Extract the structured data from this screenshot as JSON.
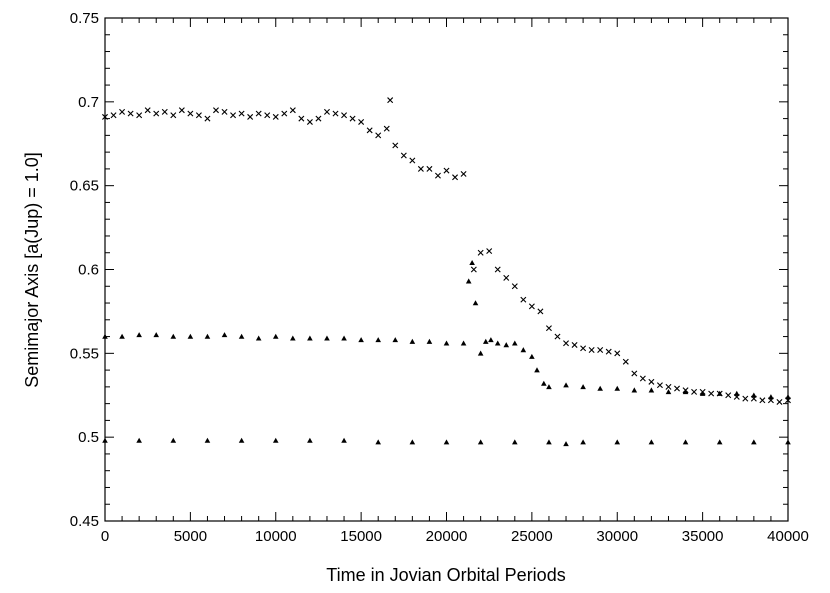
{
  "chart_data": {
    "type": "scatter",
    "title": "",
    "xlabel": "Time in Jovian Orbital Periods",
    "ylabel": "Semimajor Axis [a(Jup) = 1.0]",
    "xlim": [
      0,
      40000
    ],
    "ylim": [
      0.45,
      0.75
    ],
    "xticks": [
      0,
      5000,
      10000,
      15000,
      20000,
      25000,
      30000,
      35000,
      40000
    ],
    "yticks": [
      0.45,
      0.5,
      0.55,
      0.6,
      0.65,
      0.7,
      0.75
    ],
    "ytick_labels": [
      "0.45",
      "0.5",
      "0.55",
      "0.6",
      "0.65",
      "0.7",
      "0.75"
    ],
    "grid": false,
    "legend": "none",
    "series": [
      {
        "marker": "x",
        "points": [
          [
            0,
            0.691
          ],
          [
            500,
            0.692
          ],
          [
            1000,
            0.694
          ],
          [
            1500,
            0.693
          ],
          [
            2000,
            0.692
          ],
          [
            2500,
            0.695
          ],
          [
            3000,
            0.693
          ],
          [
            3500,
            0.694
          ],
          [
            4000,
            0.692
          ],
          [
            4500,
            0.695
          ],
          [
            5000,
            0.693
          ],
          [
            5500,
            0.692
          ],
          [
            6000,
            0.69
          ],
          [
            6500,
            0.695
          ],
          [
            7000,
            0.694
          ],
          [
            7500,
            0.692
          ],
          [
            8000,
            0.693
          ],
          [
            8500,
            0.691
          ],
          [
            9000,
            0.693
          ],
          [
            9500,
            0.692
          ],
          [
            10000,
            0.691
          ],
          [
            10500,
            0.693
          ],
          [
            11000,
            0.695
          ],
          [
            11500,
            0.69
          ],
          [
            12000,
            0.688
          ],
          [
            12500,
            0.69
          ],
          [
            13000,
            0.694
          ],
          [
            13500,
            0.693
          ],
          [
            14000,
            0.692
          ],
          [
            14500,
            0.69
          ],
          [
            15000,
            0.688
          ],
          [
            15500,
            0.683
          ],
          [
            16000,
            0.68
          ],
          [
            16500,
            0.684
          ],
          [
            16700,
            0.701
          ],
          [
            17000,
            0.674
          ],
          [
            17500,
            0.668
          ],
          [
            18000,
            0.665
          ],
          [
            18500,
            0.66
          ],
          [
            19000,
            0.66
          ],
          [
            19500,
            0.656
          ],
          [
            20000,
            0.659
          ],
          [
            20500,
            0.655
          ],
          [
            21000,
            0.657
          ],
          [
            21600,
            0.6
          ],
          [
            22000,
            0.61
          ],
          [
            22500,
            0.611
          ],
          [
            23000,
            0.6
          ],
          [
            23500,
            0.595
          ],
          [
            24000,
            0.59
          ],
          [
            24500,
            0.582
          ],
          [
            25000,
            0.578
          ],
          [
            25500,
            0.575
          ],
          [
            26000,
            0.565
          ],
          [
            26500,
            0.56
          ],
          [
            27000,
            0.556
          ],
          [
            27500,
            0.555
          ],
          [
            28000,
            0.553
          ],
          [
            28500,
            0.552
          ],
          [
            29000,
            0.552
          ],
          [
            29500,
            0.551
          ],
          [
            30000,
            0.55
          ],
          [
            30500,
            0.545
          ],
          [
            31000,
            0.538
          ],
          [
            31500,
            0.535
          ],
          [
            32000,
            0.533
          ],
          [
            32500,
            0.531
          ],
          [
            33000,
            0.53
          ],
          [
            33500,
            0.529
          ],
          [
            34000,
            0.528
          ],
          [
            34500,
            0.527
          ],
          [
            35000,
            0.527
          ],
          [
            35500,
            0.526
          ],
          [
            36000,
            0.526
          ],
          [
            36500,
            0.525
          ],
          [
            37000,
            0.524
          ],
          [
            37500,
            0.523
          ],
          [
            38000,
            0.523
          ],
          [
            38500,
            0.522
          ],
          [
            39000,
            0.522
          ],
          [
            39500,
            0.521
          ],
          [
            40000,
            0.522
          ]
        ]
      },
      {
        "marker": "triangle",
        "points": [
          [
            0,
            0.56
          ],
          [
            1000,
            0.56
          ],
          [
            2000,
            0.561
          ],
          [
            3000,
            0.561
          ],
          [
            4000,
            0.56
          ],
          [
            5000,
            0.56
          ],
          [
            6000,
            0.56
          ],
          [
            7000,
            0.561
          ],
          [
            8000,
            0.56
          ],
          [
            9000,
            0.559
          ],
          [
            10000,
            0.56
          ],
          [
            11000,
            0.559
          ],
          [
            12000,
            0.559
          ],
          [
            13000,
            0.559
          ],
          [
            14000,
            0.559
          ],
          [
            15000,
            0.558
          ],
          [
            16000,
            0.558
          ],
          [
            17000,
            0.558
          ],
          [
            18000,
            0.557
          ],
          [
            19000,
            0.557
          ],
          [
            20000,
            0.556
          ],
          [
            21000,
            0.556
          ],
          [
            21300,
            0.593
          ],
          [
            21500,
            0.604
          ],
          [
            21700,
            0.58
          ],
          [
            22000,
            0.55
          ],
          [
            22300,
            0.557
          ],
          [
            22600,
            0.558
          ],
          [
            23000,
            0.556
          ],
          [
            23500,
            0.555
          ],
          [
            24000,
            0.556
          ],
          [
            24500,
            0.552
          ],
          [
            25000,
            0.548
          ],
          [
            25300,
            0.54
          ],
          [
            25700,
            0.532
          ],
          [
            26000,
            0.53
          ],
          [
            27000,
            0.531
          ],
          [
            28000,
            0.53
          ],
          [
            29000,
            0.529
          ],
          [
            30000,
            0.529
          ],
          [
            31000,
            0.528
          ],
          [
            32000,
            0.528
          ],
          [
            33000,
            0.527
          ],
          [
            34000,
            0.527
          ],
          [
            35000,
            0.526
          ],
          [
            36000,
            0.526
          ],
          [
            37000,
            0.526
          ],
          [
            38000,
            0.525
          ],
          [
            39000,
            0.524
          ],
          [
            40000,
            0.524
          ]
        ]
      },
      {
        "marker": "triangle",
        "points": [
          [
            0,
            0.498
          ],
          [
            2000,
            0.498
          ],
          [
            4000,
            0.498
          ],
          [
            6000,
            0.498
          ],
          [
            8000,
            0.498
          ],
          [
            10000,
            0.498
          ],
          [
            12000,
            0.498
          ],
          [
            14000,
            0.498
          ],
          [
            16000,
            0.497
          ],
          [
            18000,
            0.497
          ],
          [
            20000,
            0.497
          ],
          [
            22000,
            0.497
          ],
          [
            24000,
            0.497
          ],
          [
            26000,
            0.497
          ],
          [
            27000,
            0.496
          ],
          [
            28000,
            0.497
          ],
          [
            30000,
            0.497
          ],
          [
            32000,
            0.497
          ],
          [
            34000,
            0.497
          ],
          [
            36000,
            0.497
          ],
          [
            38000,
            0.497
          ],
          [
            40000,
            0.497
          ]
        ]
      }
    ]
  }
}
